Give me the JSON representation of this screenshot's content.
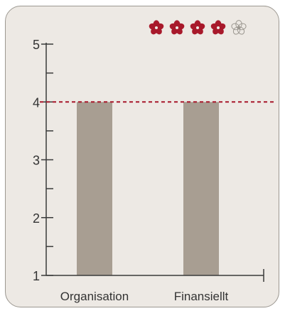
{
  "rating": {
    "filled": 4,
    "total": 5,
    "filled_color": "#a8192b",
    "empty_color": "#9c9891",
    "icon": "flower-icon"
  },
  "chart_data": {
    "type": "bar",
    "categories": [
      "Organisation",
      "Finansiellt"
    ],
    "values": [
      4,
      4
    ],
    "yticks": [
      1,
      2,
      3,
      4,
      5
    ],
    "ylim": [
      1,
      5
    ],
    "reference_line": 4,
    "bar_color": "#a89e92",
    "reference_color": "#a8192b",
    "axis_color": "#3a3a3a",
    "grid": false,
    "title": "",
    "xlabel": "",
    "ylabel": ""
  }
}
